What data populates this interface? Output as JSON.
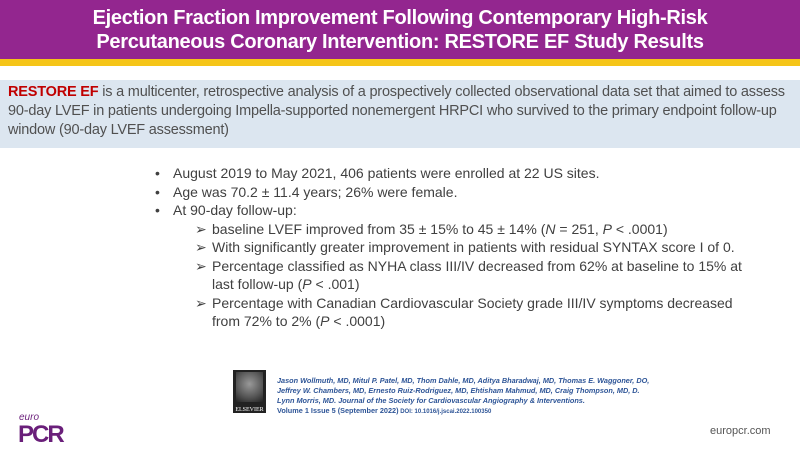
{
  "title": {
    "line1": "Ejection Fraction Improvement Following Contemporary High-Risk",
    "line2": "Percutaneous Coronary Intervention: RESTORE EF Study Results"
  },
  "intro": {
    "highlight": "RESTORE EF",
    "text": " is a multicenter, retrospective analysis of a prospectively collected observational data set that aimed to assess 90-day LVEF in patients undergoing Impella-supported nonemergent HRPCI who survived to the primary endpoint follow-up window (90-day LVEF assessment)"
  },
  "bullets": [
    "August 2019 to May 2021, 406 patients were enrolled at 22 US sites.",
    "Age was 70.2 ± 11.4 years; 26% were female.",
    "At 90-day follow-up:"
  ],
  "sub": [
    {
      "a": " baseline LVEF improved from 35 ± 15% to 45 ± 14% (",
      "n": "N",
      "b": " = 251, ",
      "p": "P",
      "c": " < .0001)"
    },
    {
      "a": "With significantly greater improvement in patients with residual SYNTAX score I of 0."
    },
    {
      "a": "Percentage classified as NYHA class III/IV decreased from 62% at baseline to 15% at last follow-up (",
      "p": "P",
      "c": " < .001)"
    },
    {
      "a": "Percentage with Canadian Cardiovascular Society grade III/IV symptoms decreased from 72% to 2% (",
      "p": "P",
      "c": " < .0001)"
    }
  ],
  "arrow": "➢",
  "citation": {
    "authors": "Jason Wollmuth, MD, Mitul P. Patel, MD, Thom Dahle, MD, Aditya Bharadwaj, MD, Thomas E. Waggoner, DO, Jeffrey W. Chambers, MD, Ernesto Ruiz-Rodriguez, MD, Ehtisham Mahmud, MD, Craig Thompson, MD, D. Lynn Morris, MD. Journal of the Society for Cardiovascular Angiography & Interventions.",
    "volume": "Volume 1 Issue 5 (September 2022)",
    "doi": " DOI: 10.1016/j.jscai.2022.100350",
    "logo": "ELSEVIER"
  },
  "footer": {
    "euro": "euro",
    "pcr": "PCR",
    "site": "europcr.com"
  }
}
